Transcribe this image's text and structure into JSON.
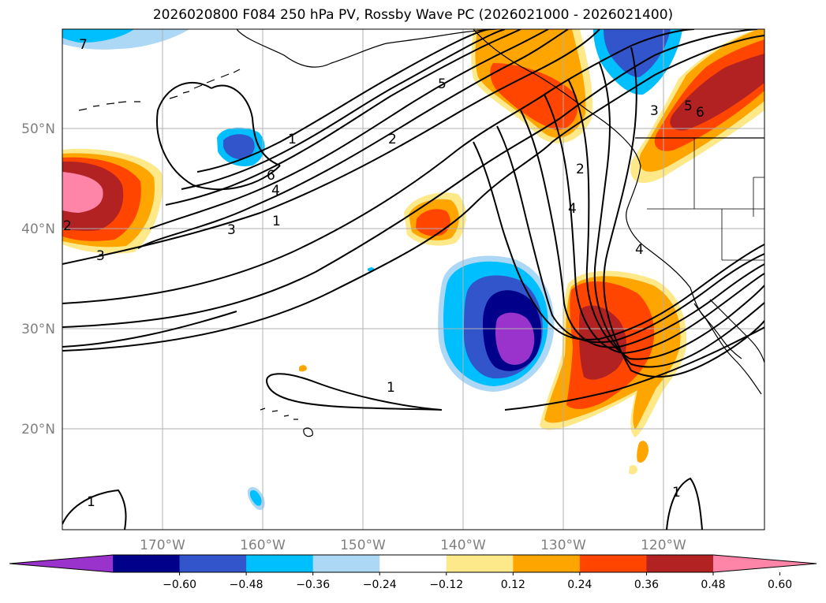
{
  "title": "2026020800 F084 250 hPa PV, Rossby Wave PC (2026021000 - 2026021400)",
  "map": {
    "projection": "PlateCarree",
    "lon_range": [
      -180,
      -110
    ],
    "lat_range": [
      10,
      60
    ],
    "lon_tick_labels": [
      "170°W",
      "160°W",
      "150°W",
      "140°W",
      "130°W",
      "120°W"
    ],
    "lat_tick_labels": [
      "50°N",
      "40°N",
      "30°N",
      "20°N"
    ],
    "gridlines": true
  },
  "contour_labels": [
    "7",
    "5",
    "2",
    "1",
    "6",
    "4",
    "3",
    "1",
    "2",
    "3",
    "1",
    "2",
    "4",
    "4",
    "3",
    "5",
    "6",
    "1",
    "1"
  ],
  "colorbar": {
    "tick_labels": [
      "−0.60",
      "−0.48",
      "−0.36",
      "−0.24",
      "−0.12",
      "0.12",
      "0.24",
      "0.36",
      "0.48",
      "0.60"
    ],
    "colors": [
      "#9933cc",
      "#00008b",
      "#3355cc",
      "#00bfff",
      "#add8f5",
      "#ffffff",
      "#fde98a",
      "#ffa500",
      "#ff4500",
      "#b22222",
      "#ff85a8"
    ]
  }
}
